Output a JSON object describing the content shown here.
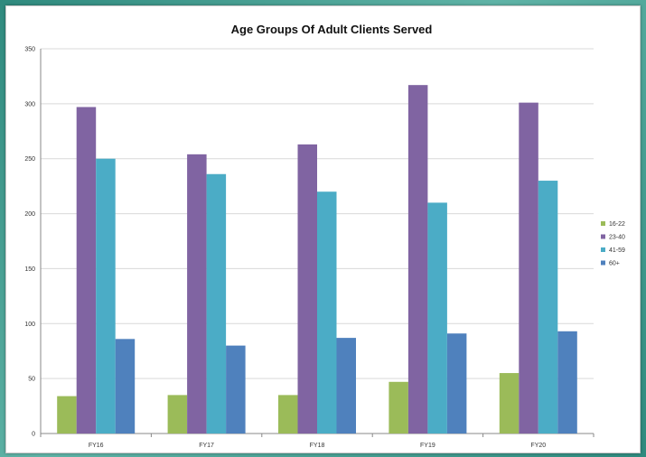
{
  "chart_data": {
    "type": "bar",
    "title": "Age Groups Of Adult Clients Served",
    "xlabel": "",
    "ylabel": "",
    "ylim": [
      0,
      350
    ],
    "yticks": [
      0,
      50,
      100,
      150,
      200,
      250,
      300,
      350
    ],
    "grid": true,
    "legend_position": "right",
    "categories": [
      "FY16",
      "FY17",
      "FY18",
      "FY19",
      "FY20"
    ],
    "series": [
      {
        "name": "16-22",
        "color": "#9bbb59",
        "values": [
          34,
          35,
          35,
          47,
          55
        ]
      },
      {
        "name": "23-40",
        "color": "#8064a2",
        "values": [
          297,
          254,
          263,
          317,
          301
        ]
      },
      {
        "name": "41-59",
        "color": "#4bacc6",
        "values": [
          250,
          236,
          220,
          210,
          230
        ]
      },
      {
        "name": "60+",
        "color": "#4f81bd",
        "values": [
          86,
          80,
          87,
          91,
          93
        ]
      }
    ]
  }
}
